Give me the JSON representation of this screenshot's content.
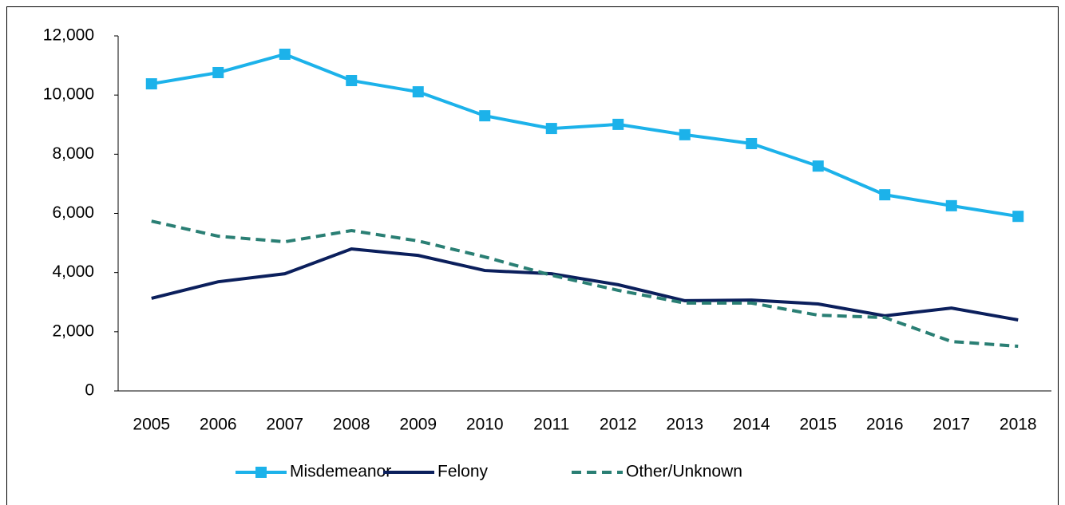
{
  "chart_data": {
    "type": "line",
    "x": [
      "2005",
      "2006",
      "2007",
      "2008",
      "2009",
      "2010",
      "2011",
      "2012",
      "2013",
      "2014",
      "2015",
      "2016",
      "2017",
      "2018"
    ],
    "series": [
      {
        "name": "Misdemeanor",
        "color": "#1cb2ea",
        "line_style": "solid",
        "marker": "square",
        "values": [
          10380,
          10760,
          11380,
          10490,
          10110,
          9300,
          8870,
          9010,
          8660,
          8360,
          7600,
          6630,
          6260,
          5900
        ]
      },
      {
        "name": "Felony",
        "color": "#0b1f5c",
        "line_style": "solid",
        "marker": "none",
        "values": [
          3130,
          3690,
          3960,
          4800,
          4580,
          4070,
          3960,
          3590,
          3050,
          3070,
          2940,
          2540,
          2800,
          2400
        ]
      },
      {
        "name": "Other/Unknown",
        "color": "#2a7f74",
        "line_style": "dashed",
        "marker": "none",
        "values": [
          5740,
          5230,
          5040,
          5420,
          5070,
          4530,
          3910,
          3400,
          2970,
          2970,
          2560,
          2480,
          1670,
          1510
        ]
      }
    ],
    "ylim": [
      0,
      12000
    ],
    "yticks": [
      0,
      {
        "value": 2000,
        "label": "2,000"
      },
      {
        "value": 4000,
        "label": "4,000"
      },
      {
        "value": 6000,
        "label": "6,000"
      },
      {
        "value": 8000,
        "label": "8,000"
      },
      {
        "value": 10000,
        "label": "10,000"
      },
      {
        "value": 12000,
        "label": "12,000"
      }
    ],
    "grid": false,
    "legend": "bottom"
  }
}
